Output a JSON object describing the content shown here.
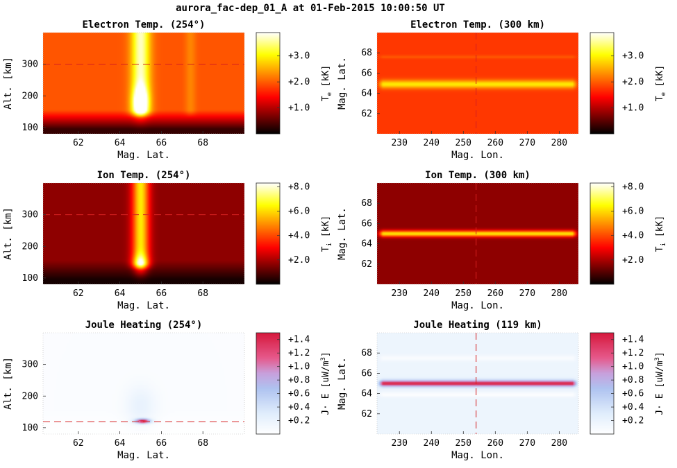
{
  "figure": {
    "title": "aurora_fac-dep_01_A at 01-Feb-2015 10:00:50 UT"
  },
  "chart_data": [
    {
      "type": "heatmap",
      "title": "Electron Temp. (254°)",
      "xlabel": "Mag. Lat.",
      "ylabel": "Alt. [km]",
      "xlim": [
        60.3,
        70
      ],
      "ylim": [
        80,
        400
      ],
      "xticks": [
        62,
        64,
        66,
        68
      ],
      "yticks": [
        100,
        200,
        300
      ],
      "colormap": "hot",
      "colorbar": {
        "label_main": "T",
        "label_sub": "e",
        "label_unit": "[kK]",
        "range": [
          0,
          3.9
        ],
        "ticks": [
          "+1.0",
          "+2.0",
          "+3.0"
        ],
        "tick_values": [
          1.0,
          2.0,
          3.0
        ]
      },
      "cut_line": {
        "orientation": "horizontal",
        "value": 300
      },
      "field": {
        "background_scale": 0.5,
        "features": [
          {
            "kind": "ridge",
            "center": 65.0,
            "width": 0.45,
            "from": 130,
            "amp": 0.45
          },
          {
            "kind": "blob",
            "x": 65.0,
            "y": 180,
            "sx": 0.35,
            "sy": 45,
            "amp": 0.45
          },
          {
            "kind": "ridge",
            "center": 67.4,
            "width": 0.25,
            "from": 130,
            "amp": 0.08
          }
        ]
      }
    },
    {
      "type": "heatmap",
      "title": "Electron Temp. (300 km)",
      "xlabel": "Mag. Lon.",
      "ylabel": "Mag. Lat.",
      "xlim": [
        223,
        286
      ],
      "ylim": [
        60,
        70
      ],
      "xticks": [
        230,
        240,
        250,
        260,
        270,
        280
      ],
      "yticks": [
        62,
        64,
        66,
        68
      ],
      "colormap": "hot",
      "colorbar": {
        "label_main": "T",
        "label_sub": "e",
        "label_unit": "[kK]",
        "range": [
          0,
          3.9
        ],
        "ticks": [
          "+1.0",
          "+2.0",
          "+3.0"
        ],
        "tick_values": [
          1.0,
          2.0,
          3.0
        ]
      },
      "cut_line": {
        "orientation": "vertical",
        "value": 254
      },
      "field": {
        "background_scale": 0.45,
        "features": [
          {
            "kind": "band",
            "center": 64.9,
            "width": 0.4,
            "amp": 0.3
          },
          {
            "kind": "band",
            "center": 67.6,
            "width": 0.15,
            "amp": 0.06
          }
        ]
      }
    },
    {
      "type": "heatmap",
      "title": "Ion Temp. (254°)",
      "xlabel": "Mag. Lat.",
      "ylabel": "Alt. [km]",
      "xlim": [
        60.3,
        70
      ],
      "ylim": [
        80,
        400
      ],
      "xticks": [
        62,
        64,
        66,
        68
      ],
      "yticks": [
        100,
        200,
        300
      ],
      "colormap": "hot",
      "colorbar": {
        "label_main": "T",
        "label_sub": "i",
        "label_unit": "[kK]",
        "range": [
          0,
          8.3
        ],
        "ticks": [
          "+2.0",
          "+4.0",
          "+6.0",
          "+8.0"
        ],
        "tick_values": [
          2.0,
          4.0,
          6.0,
          8.0
        ]
      },
      "cut_line": {
        "orientation": "horizontal",
        "value": 300
      },
      "field": {
        "background_scale": 0.2,
        "features": [
          {
            "kind": "ridge",
            "center": 65.0,
            "width": 0.4,
            "from": 125,
            "amp": 0.55
          },
          {
            "kind": "blob",
            "x": 65.0,
            "y": 140,
            "sx": 0.35,
            "sy": 30,
            "amp": 0.35
          }
        ]
      }
    },
    {
      "type": "heatmap",
      "title": "Ion Temp. (300 km)",
      "xlabel": "Mag. Lon.",
      "ylabel": "Mag. Lat.",
      "xlim": [
        223,
        286
      ],
      "ylim": [
        60,
        70
      ],
      "xticks": [
        230,
        240,
        250,
        260,
        270,
        280
      ],
      "yticks": [
        62,
        64,
        66,
        68
      ],
      "colormap": "hot",
      "colorbar": {
        "label_main": "T",
        "label_sub": "i",
        "label_unit": "[kK]",
        "range": [
          0,
          8.3
        ],
        "ticks": [
          "+2.0",
          "+4.0",
          "+6.0",
          "+8.0"
        ],
        "tick_values": [
          2.0,
          4.0,
          6.0,
          8.0
        ]
      },
      "cut_line": {
        "orientation": "vertical",
        "value": 254
      },
      "field": {
        "background_scale": 0.2,
        "features": [
          {
            "kind": "band",
            "center": 65.0,
            "width": 0.3,
            "amp": 0.55
          }
        ]
      }
    },
    {
      "type": "heatmap",
      "title": "Joule Heating (254°)",
      "xlabel": "Mag. Lat.",
      "ylabel": "Alt. [km]",
      "xlim": [
        60.3,
        70
      ],
      "ylim": [
        80,
        400
      ],
      "xticks": [
        62,
        64,
        66,
        68
      ],
      "yticks": [
        100,
        200,
        300
      ],
      "colormap": "coolwarm-light",
      "colorbar": {
        "label_main": "J· E [uW/m",
        "label_sup": "3",
        "label_unit": "]",
        "range": [
          0,
          1.5
        ],
        "ticks": [
          "+0.2",
          "+0.4",
          "+0.6",
          "+0.8",
          "+1.0",
          "+1.2",
          "+1.4"
        ],
        "tick_values": [
          0.2,
          0.4,
          0.6,
          0.8,
          1.0,
          1.2,
          1.4
        ]
      },
      "cut_line": {
        "orientation": "horizontal",
        "value": 119
      },
      "field": {
        "background_scale": 0.03,
        "features": [
          {
            "kind": "blob",
            "x": 65.1,
            "y": 121,
            "sx": 0.35,
            "sy": 7,
            "amp": 0.95
          },
          {
            "kind": "blob",
            "x": 65.0,
            "y": 170,
            "sx": 0.7,
            "sy": 60,
            "amp": 0.12
          }
        ]
      }
    },
    {
      "type": "heatmap",
      "title": "Joule Heating (119 km)",
      "xlabel": "Mag. Lon.",
      "ylabel": "Mag. Lat.",
      "xlim": [
        223,
        286
      ],
      "ylim": [
        60,
        70
      ],
      "xticks": [
        230,
        240,
        250,
        260,
        270,
        280
      ],
      "yticks": [
        62,
        64,
        66,
        68
      ],
      "colormap": "coolwarm-light",
      "colorbar": {
        "label_main": "J· E [uW/m",
        "label_sup": "3",
        "label_unit": "]",
        "range": [
          0,
          1.5
        ],
        "ticks": [
          "+0.2",
          "+0.4",
          "+0.6",
          "+0.8",
          "+1.0",
          "+1.2",
          "+1.4"
        ],
        "tick_values": [
          0.2,
          0.4,
          0.6,
          0.8,
          1.0,
          1.2,
          1.4
        ]
      },
      "cut_line": {
        "orientation": "vertical",
        "value": 254
      },
      "field": {
        "background_scale": 0.12,
        "features": [
          {
            "kind": "band",
            "center": 65.0,
            "width": 0.3,
            "amp": 0.85
          },
          {
            "kind": "band",
            "center": 63.9,
            "width": 0.25,
            "amp": -0.1
          },
          {
            "kind": "band",
            "center": 67.5,
            "width": 0.3,
            "amp": -0.08
          }
        ]
      }
    }
  ]
}
